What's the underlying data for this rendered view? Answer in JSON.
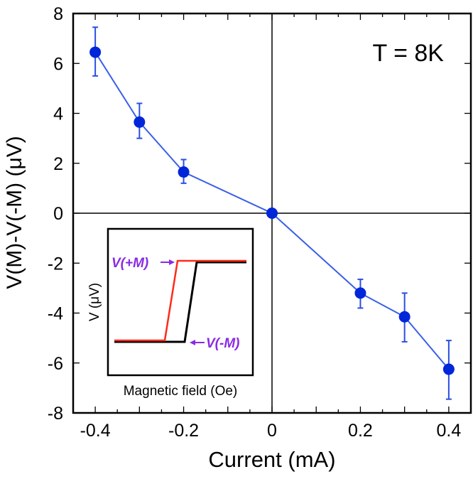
{
  "chart_data": {
    "type": "line",
    "title": "",
    "annotation": "T = 8K",
    "xlabel": "Current (mA)",
    "ylabel": "V(M)-V(-M) (μV)",
    "xlim": [
      -0.45,
      0.45
    ],
    "ylim": [
      -8,
      8
    ],
    "xticks": [
      -0.4,
      -0.2,
      0,
      0.2,
      0.4
    ],
    "xtick_labels": [
      "-0.4",
      "-0.2",
      "0",
      "0.2",
      "0.4"
    ],
    "yticks": [
      8,
      6,
      4,
      2,
      0,
      -2,
      -4,
      -6,
      -8
    ],
    "ytick_labels": [
      "8",
      "6",
      "4",
      "2",
      "0",
      "-2",
      "-4",
      "-6",
      "-8"
    ],
    "grid": false,
    "series": [
      {
        "name": "V(M)-V(-M)",
        "color": "#0026d9",
        "x": [
          -0.4,
          -0.3,
          -0.2,
          0,
          0.2,
          0.3,
          0.4
        ],
        "y": [
          6.45,
          3.65,
          1.65,
          0,
          -3.2,
          -4.15,
          -6.25
        ],
        "err_upper": [
          7.45,
          4.4,
          2.15,
          0,
          -2.65,
          -3.2,
          -5.1
        ],
        "err_lower": [
          5.5,
          3.0,
          1.2,
          0,
          -3.8,
          -5.15,
          -7.45
        ]
      }
    ],
    "inset": {
      "xlabel": "Magnetic field (Oe)",
      "ylabel": "V (μV)",
      "labels": [
        "V(+M)",
        "V(-M)"
      ],
      "colors": {
        "plus": "#ff2a1a",
        "minus": "#000000",
        "label": "#8a2be2"
      }
    }
  }
}
